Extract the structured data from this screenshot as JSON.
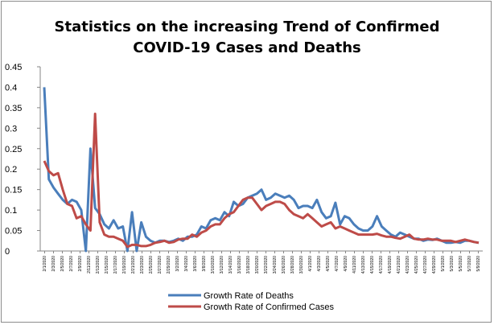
{
  "chart_data": {
    "type": "line",
    "title_line1": "Statistics on the increasing Trend of Confirmed",
    "title_line2": "COVID-19 Cases and Deaths",
    "xlabel": "",
    "ylabel": "",
    "ylim": [
      0,
      0.45
    ],
    "yticks": [
      "0",
      "0.05",
      "0.1",
      "0.15",
      "0.2",
      "0.25",
      "0.3",
      "0.35",
      "0.4",
      "0.45"
    ],
    "grid": false,
    "legend_position": "bottom",
    "x_tick_labels": [
      "2/1/2020",
      "2/3/2020",
      "2/5/2020",
      "2/7/2020",
      "2/9/2020",
      "2/11/2020",
      "2/13/2020",
      "2/15/2020",
      "2/17/2020",
      "2/19/2020",
      "2/21/2020",
      "2/23/2020",
      "2/25/2020",
      "2/27/2020",
      "2/29/2020",
      "3/2/2020",
      "3/4/2020",
      "3/6/2020",
      "3/8/2020",
      "3/10/2020",
      "3/12/2020",
      "3/14/2020",
      "3/16/2020",
      "3/18/2020",
      "3/20/2020",
      "3/22/2020",
      "3/24/2020",
      "3/26/2020",
      "3/28/2020",
      "3/30/2020",
      "4/1/2020",
      "4/3/2020",
      "4/5/2020",
      "4/7/2020",
      "4/9/2020",
      "4/11/2020",
      "4/13/2020",
      "4/15/2020",
      "4/17/2020",
      "4/19/2020",
      "4/21/2020",
      "4/23/2020",
      "4/25/2020",
      "4/27/2020",
      "4/29/2020",
      "5/1/2020",
      "5/3/2020",
      "5/5/2020",
      "5/7/2020",
      "5/9/2020"
    ],
    "series": [
      {
        "name": "Growth Rate of Deaths",
        "color": "#4a7ebb",
        "values": [
          0.4,
          0.175,
          0.155,
          0.14,
          0.125,
          0.115,
          0.125,
          0.12,
          0.1,
          0.0,
          0.25,
          0.105,
          0.09,
          0.065,
          0.055,
          0.075,
          0.055,
          0.06,
          0.0,
          0.095,
          0.0,
          0.07,
          0.035,
          0.025,
          0.02,
          0.025,
          0.025,
          0.022,
          0.025,
          0.03,
          0.025,
          0.035,
          0.035,
          0.04,
          0.06,
          0.055,
          0.075,
          0.08,
          0.075,
          0.095,
          0.085,
          0.12,
          0.11,
          0.115,
          0.13,
          0.135,
          0.14,
          0.15,
          0.125,
          0.13,
          0.14,
          0.135,
          0.13,
          0.135,
          0.125,
          0.105,
          0.11,
          0.11,
          0.105,
          0.125,
          0.095,
          0.08,
          0.085,
          0.118,
          0.065,
          0.085,
          0.08,
          0.065,
          0.055,
          0.05,
          0.05,
          0.06,
          0.085,
          0.06,
          0.05,
          0.04,
          0.035,
          0.045,
          0.04,
          0.035,
          0.03,
          0.03,
          0.025,
          0.028,
          0.027,
          0.03,
          0.025,
          0.02,
          0.02,
          0.022,
          0.02,
          0.025,
          0.025,
          0.022,
          0.02
        ],
        "show_x_every": 0
      },
      {
        "name": "Growth Rate of Confirmed Cases",
        "color": "#be4b48",
        "values": [
          0.22,
          0.195,
          0.185,
          0.19,
          0.15,
          0.115,
          0.11,
          0.08,
          0.085,
          0.065,
          0.05,
          0.335,
          0.07,
          0.04,
          0.035,
          0.035,
          0.03,
          0.025,
          0.01,
          0.015,
          0.015,
          0.012,
          0.012,
          0.015,
          0.02,
          0.022,
          0.025,
          0.02,
          0.022,
          0.028,
          0.03,
          0.03,
          0.04,
          0.035,
          0.045,
          0.05,
          0.06,
          0.065,
          0.065,
          0.08,
          0.09,
          0.095,
          0.11,
          0.125,
          0.13,
          0.13,
          0.115,
          0.1,
          0.11,
          0.115,
          0.12,
          0.12,
          0.115,
          0.1,
          0.09,
          0.085,
          0.08,
          0.09,
          0.08,
          0.07,
          0.06,
          0.065,
          0.07,
          0.055,
          0.06,
          0.055,
          0.05,
          0.045,
          0.04,
          0.04,
          0.04,
          0.04,
          0.042,
          0.038,
          0.035,
          0.035,
          0.032,
          0.03,
          0.035,
          0.04,
          0.03,
          0.028,
          0.028,
          0.03,
          0.028,
          0.028,
          0.025,
          0.025,
          0.025,
          0.022,
          0.025,
          0.028,
          0.025,
          0.022,
          0.02
        ]
      }
    ]
  }
}
